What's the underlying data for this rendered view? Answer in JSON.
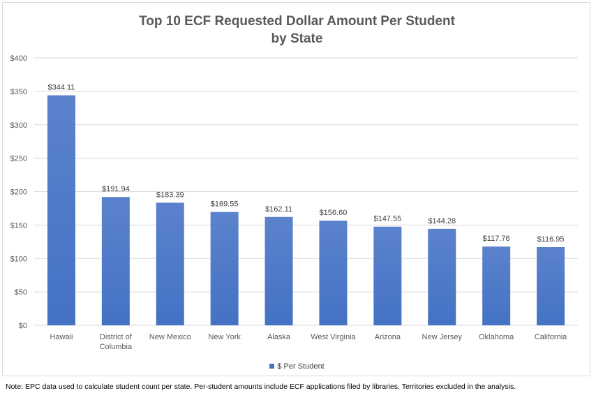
{
  "chart_data": {
    "type": "bar",
    "title_line1": "Top 10 ECF Requested Dollar Amount Per Student",
    "title_line2": "by State",
    "categories": [
      "Hawaii",
      "District of Columbia",
      "New Mexico",
      "New York",
      "Alaska",
      "West Virginia",
      "Arizona",
      "New Jersey",
      "Oklahoma",
      "California"
    ],
    "category_lines": [
      [
        "Hawaii"
      ],
      [
        "District of",
        "Columbia"
      ],
      [
        "New Mexico"
      ],
      [
        "New York"
      ],
      [
        "Alaska"
      ],
      [
        "West Virginia"
      ],
      [
        "Arizona"
      ],
      [
        "New Jersey"
      ],
      [
        "Oklahoma"
      ],
      [
        "California"
      ]
    ],
    "series": [
      {
        "name": "$ Per Student",
        "values": [
          344.11,
          191.94,
          183.39,
          169.55,
          162.11,
          156.6,
          147.55,
          144.28,
          117.76,
          116.95
        ]
      }
    ],
    "data_labels": [
      "$344.11",
      "$191.94",
      "$183.39",
      "$169.55",
      "$162.11",
      "$156.60",
      "$147.55",
      "$144.28",
      "$117.76",
      "$116.95"
    ],
    "ylim": [
      0,
      400
    ],
    "yticks": [
      0,
      50,
      100,
      150,
      200,
      250,
      300,
      350,
      400
    ],
    "ytick_labels": [
      "$0",
      "$50",
      "$100",
      "$150",
      "$200",
      "$250",
      "$300",
      "$350",
      "$400"
    ],
    "xlabel": "",
    "ylabel": "",
    "grid": true,
    "legend_position": "bottom",
    "bar_color": "#4472c4"
  },
  "note": "Note: EPC data used to calculate student count per state. Per-student amounts include ECF applications filed by libraries. Territories excluded in the analysis."
}
